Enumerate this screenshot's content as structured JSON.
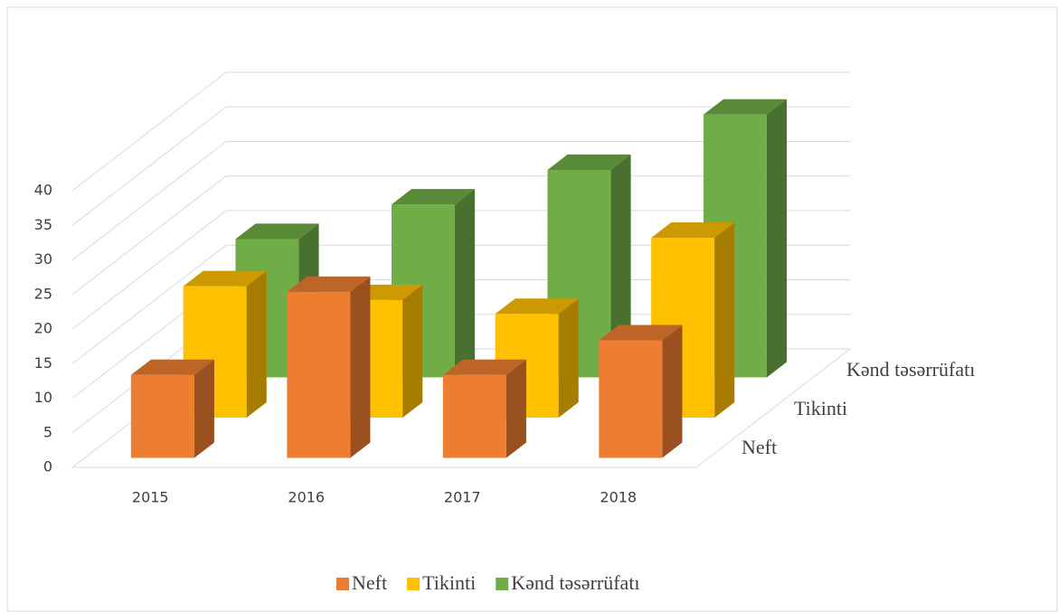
{
  "chart_data": {
    "type": "bar3d",
    "categories": [
      "2015",
      "2016",
      "2017",
      "2018"
    ],
    "series": [
      {
        "name": "Neft",
        "color": "#ED7D31",
        "values": [
          12,
          24,
          12,
          17
        ]
      },
      {
        "name": "Tikinti",
        "color": "#FFC000",
        "values": [
          19,
          17,
          15,
          26
        ]
      },
      {
        "name": "Kənd  təsərrüfatı",
        "color": "#70AD47",
        "values": [
          20,
          25,
          30,
          38
        ]
      }
    ],
    "ylim": [
      0,
      40
    ],
    "yticks": [
      0,
      5,
      10,
      15,
      20,
      25,
      30,
      35,
      40
    ],
    "grid": true,
    "legend": "bottom"
  }
}
